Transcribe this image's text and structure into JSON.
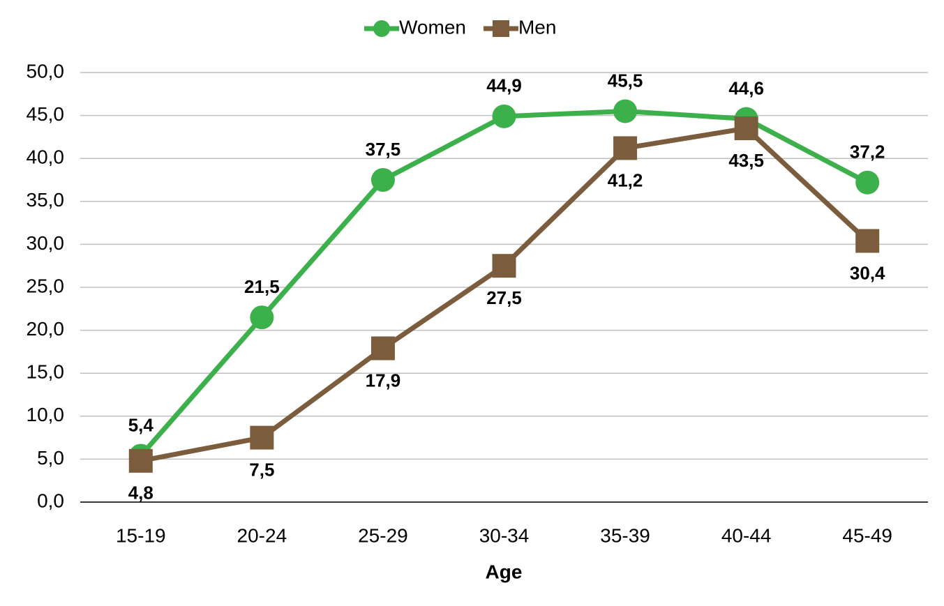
{
  "chart_data": {
    "type": "line",
    "x_label": "Age",
    "categories": [
      "15-19",
      "20-24",
      "25-29",
      "30-34",
      "35-39",
      "40-44",
      "45-49"
    ],
    "series": [
      {
        "name": "Women",
        "color": "#3cb04a",
        "marker": "circle",
        "values": [
          5.4,
          21.5,
          37.5,
          44.9,
          45.5,
          44.6,
          37.2
        ],
        "value_labels": [
          "5,4",
          "21,5",
          "37,5",
          "44,9",
          "45,5",
          "44,6",
          "37,2"
        ]
      },
      {
        "name": "Men",
        "color": "#7b5c3c",
        "marker": "square",
        "values": [
          4.8,
          7.5,
          17.9,
          27.5,
          41.2,
          43.5,
          30.4
        ],
        "value_labels": [
          "4,8",
          "7,5",
          "17,9",
          "27,5",
          "41,2",
          "43,5",
          "30,4"
        ]
      }
    ],
    "ylim": [
      0,
      50
    ],
    "yticks": [
      {
        "value": 0,
        "label": "0,0"
      },
      {
        "value": 5,
        "label": "5,0"
      },
      {
        "value": 10,
        "label": "10,0"
      },
      {
        "value": 15,
        "label": "15,0"
      },
      {
        "value": 20,
        "label": "20,0"
      },
      {
        "value": 25,
        "label": "25,0"
      },
      {
        "value": 30,
        "label": "30,0"
      },
      {
        "value": 35,
        "label": "35,0"
      },
      {
        "value": 40,
        "label": "40,0"
      },
      {
        "value": 45,
        "label": "45,0"
      },
      {
        "value": 50,
        "label": "50,0"
      }
    ],
    "grid": true,
    "legend": "top"
  }
}
